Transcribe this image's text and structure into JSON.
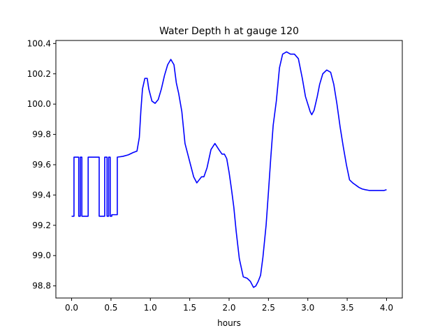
{
  "chart_data": {
    "type": "line",
    "title": "Water Depth h at gauge 120",
    "xlabel": "hours",
    "ylabel": "",
    "xlim": [
      -0.2,
      4.2
    ],
    "ylim": [
      98.72,
      100.42
    ],
    "xticks": [
      0.0,
      0.5,
      1.0,
      1.5,
      2.0,
      2.5,
      3.0,
      3.5,
      4.0
    ],
    "xtick_labels": [
      "0.0",
      "0.5",
      "1.0",
      "1.5",
      "2.0",
      "2.5",
      "3.0",
      "3.5",
      "4.0"
    ],
    "yticks": [
      98.8,
      99.0,
      99.2,
      99.4,
      99.6,
      99.8,
      100.0,
      100.2,
      100.4
    ],
    "ytick_labels": [
      "98.8",
      "99.0",
      "99.2",
      "99.4",
      "99.6",
      "99.8",
      "100.0",
      "100.2",
      "100.4"
    ],
    "grid": false,
    "series": [
      {
        "color": "#0000ff",
        "x": [
          0.0,
          0.03,
          0.03,
          0.09,
          0.09,
          0.11,
          0.11,
          0.13,
          0.13,
          0.21,
          0.21,
          0.35,
          0.35,
          0.42,
          0.42,
          0.45,
          0.45,
          0.47,
          0.47,
          0.49,
          0.49,
          0.51,
          0.51,
          0.58,
          0.58,
          0.65,
          0.72,
          0.78,
          0.83,
          0.86,
          0.88,
          0.9,
          0.93,
          0.96,
          0.98,
          1.02,
          1.06,
          1.1,
          1.14,
          1.18,
          1.22,
          1.26,
          1.3,
          1.33,
          1.36,
          1.4,
          1.44,
          1.48,
          1.51,
          1.55,
          1.59,
          1.62,
          1.65,
          1.68,
          1.72,
          1.77,
          1.82,
          1.87,
          1.91,
          1.94,
          1.97,
          2.0,
          2.03,
          2.06,
          2.09,
          2.13,
          2.18,
          2.23,
          2.27,
          2.31,
          2.34,
          2.37,
          2.4,
          2.43,
          2.47,
          2.5,
          2.53,
          2.56,
          2.6,
          2.64,
          2.68,
          2.73,
          2.78,
          2.83,
          2.88,
          2.93,
          2.97,
          3.0,
          3.03,
          3.05,
          3.08,
          3.12,
          3.15,
          3.19,
          3.24,
          3.29,
          3.33,
          3.37,
          3.41,
          3.45,
          3.49,
          3.53,
          3.57,
          3.61,
          3.65,
          3.69,
          3.73,
          3.78,
          3.83,
          3.88,
          3.93,
          3.97,
          4.0
        ],
        "y": [
          99.26,
          99.26,
          99.65,
          99.65,
          99.26,
          99.26,
          99.65,
          99.65,
          99.26,
          99.26,
          99.65,
          99.65,
          99.26,
          99.26,
          99.65,
          99.65,
          99.26,
          99.26,
          99.65,
          99.65,
          99.26,
          99.26,
          99.27,
          99.27,
          99.65,
          99.655,
          99.665,
          99.68,
          99.69,
          99.78,
          99.96,
          100.1,
          100.17,
          100.17,
          100.1,
          100.02,
          100.005,
          100.03,
          100.1,
          100.19,
          100.26,
          100.295,
          100.26,
          100.14,
          100.07,
          99.95,
          99.74,
          99.66,
          99.6,
          99.52,
          99.48,
          99.5,
          99.52,
          99.52,
          99.58,
          99.7,
          99.74,
          99.7,
          99.67,
          99.67,
          99.64,
          99.55,
          99.44,
          99.32,
          99.16,
          98.98,
          98.86,
          98.85,
          98.83,
          98.79,
          98.8,
          98.83,
          98.87,
          98.99,
          99.2,
          99.42,
          99.65,
          99.86,
          100.02,
          100.24,
          100.33,
          100.345,
          100.33,
          100.33,
          100.3,
          100.17,
          100.05,
          100.0,
          99.95,
          99.93,
          99.96,
          100.05,
          100.13,
          100.2,
          100.225,
          100.21,
          100.13,
          100.0,
          99.85,
          99.72,
          99.6,
          99.5,
          99.48,
          99.465,
          99.45,
          99.44,
          99.435,
          99.43,
          99.43,
          99.43,
          99.43,
          99.43,
          99.435
        ],
        "name": ""
      }
    ]
  }
}
